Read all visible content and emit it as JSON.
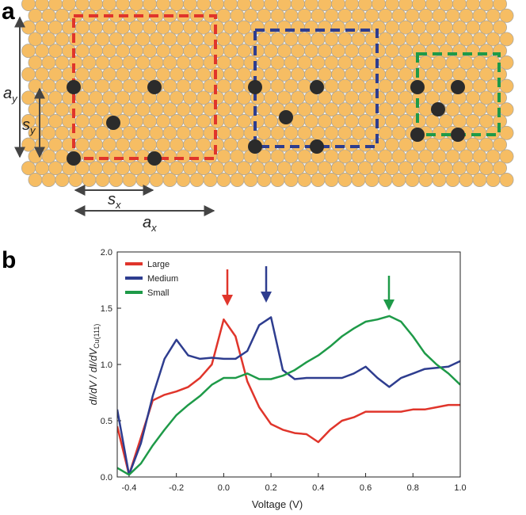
{
  "panel_labels": [
    "a",
    "b"
  ],
  "diagram": {
    "labels": [
      {
        "main": "a",
        "sub": "y"
      },
      {
        "main": "s",
        "sub": "y"
      },
      {
        "main": "s",
        "sub": "x"
      },
      {
        "main": "a",
        "sub": "x"
      }
    ]
  },
  "chart_data": {
    "type": "line",
    "xlabel": "Voltage (V)",
    "ylabel": "dI/dV / dI/dV",
    "ylabel_sub": "Cu(111)",
    "x": [
      -0.45,
      -0.4,
      -0.35,
      -0.3,
      -0.25,
      -0.2,
      -0.15,
      -0.1,
      -0.05,
      0.0,
      0.05,
      0.1,
      0.15,
      0.2,
      0.25,
      0.3,
      0.35,
      0.4,
      0.45,
      0.5,
      0.55,
      0.6,
      0.65,
      0.7,
      0.75,
      0.8,
      0.85,
      0.9,
      0.95,
      1.0
    ],
    "series": [
      {
        "name": "Large",
        "color": "#e0352b",
        "values": [
          0.45,
          0.02,
          0.35,
          0.68,
          0.73,
          0.76,
          0.8,
          0.88,
          1.0,
          1.4,
          1.25,
          0.85,
          0.62,
          0.47,
          0.42,
          0.39,
          0.38,
          0.31,
          0.42,
          0.5,
          0.53,
          0.58,
          0.58,
          0.58,
          0.58,
          0.6,
          0.6,
          0.62,
          0.64,
          0.64
        ]
      },
      {
        "name": "Medium",
        "color": "#2e3d8f",
        "values": [
          0.6,
          0.02,
          0.3,
          0.72,
          1.05,
          1.22,
          1.08,
          1.05,
          1.06,
          1.05,
          1.05,
          1.12,
          1.35,
          1.42,
          0.95,
          0.87,
          0.88,
          0.88,
          0.88,
          0.88,
          0.92,
          0.98,
          0.88,
          0.8,
          0.88,
          0.92,
          0.96,
          0.97,
          0.98,
          1.03
        ]
      },
      {
        "name": "Small",
        "color": "#1e9a48",
        "values": [
          0.08,
          0.02,
          0.12,
          0.28,
          0.42,
          0.55,
          0.64,
          0.72,
          0.82,
          0.88,
          0.88,
          0.92,
          0.87,
          0.87,
          0.9,
          0.95,
          1.02,
          1.08,
          1.16,
          1.25,
          1.32,
          1.38,
          1.4,
          1.43,
          1.38,
          1.25,
          1.1,
          1.0,
          0.92,
          0.82
        ]
      }
    ],
    "xlim": [
      -0.45,
      1.0
    ],
    "xticks": [
      -0.4,
      -0.2,
      {
        "value": 0,
        "label": "0.0"
      },
      0.2,
      0.4,
      0.6,
      0.8,
      {
        "value": 1,
        "label": "1.0"
      }
    ],
    "ylim": [
      0,
      2
    ],
    "yticks": [
      {
        "value": 0,
        "label": "0.0"
      },
      0.5,
      {
        "value": 1,
        "label": "1.0"
      },
      1.5,
      {
        "value": 2,
        "label": "2.0"
      }
    ],
    "legend": "upper-left"
  }
}
